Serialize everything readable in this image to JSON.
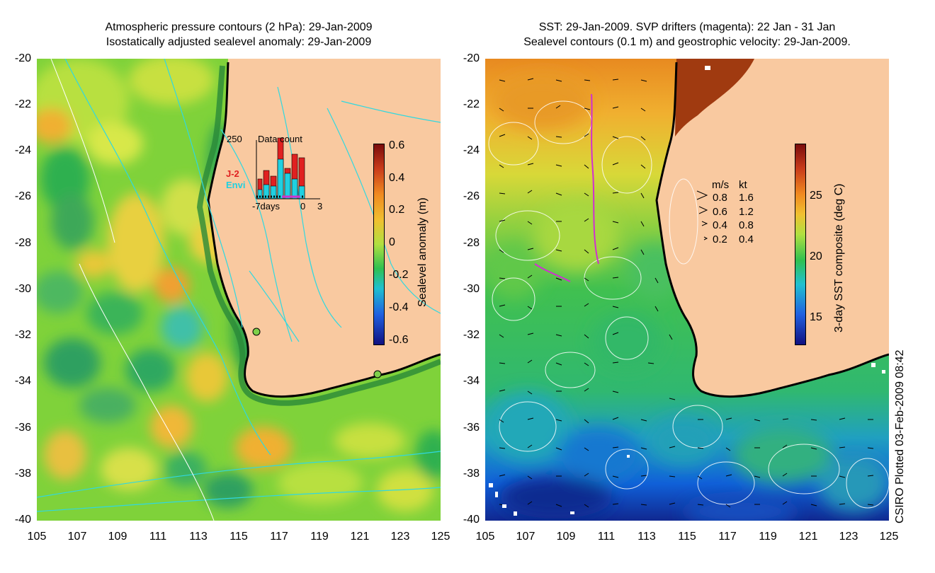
{
  "left_map": {
    "title_line1": "Atmospheric pressure contours (2 hPa): 29-Jan-2009",
    "title_line2": "Isostatically adjusted sealevel anomaly: 29-Jan-2009",
    "y_ticks": [
      "-20",
      "-22",
      "-24",
      "-26",
      "-28",
      "-30",
      "-32",
      "-34",
      "-36",
      "-38",
      "-40"
    ],
    "x_ticks": [
      "105",
      "107",
      "109",
      "111",
      "113",
      "115",
      "117",
      "119",
      "121",
      "123",
      "125"
    ],
    "colorbar": {
      "label": "Sealevel anomaly (m)",
      "ticks": [
        "0.6",
        "0.4",
        "0.2",
        "0",
        "-0.2",
        "-0.4",
        "-0.6"
      ],
      "range": [
        -0.6,
        0.6
      ]
    },
    "inset": {
      "title": "Data count",
      "ymax_label": "250",
      "x_labels": [
        "-7days",
        "0",
        "3"
      ],
      "series": [
        {
          "name": "J-2",
          "color": "#e02020"
        },
        {
          "name": "Envi",
          "color": "#20d0e0"
        }
      ]
    },
    "colors": {
      "land": "#f9c9a0",
      "coast": "#000000",
      "pressure_contour": "#30d8e0"
    }
  },
  "right_map": {
    "title_line1": "SST: 29-Jan-2009. SVP drifters (magenta): 22 Jan - 31 Jan",
    "title_line2": "Sealevel contours (0.1 m) and geostrophic velocity: 29-Jan-2009.",
    "y_ticks": [
      "-20",
      "-22",
      "-24",
      "-26",
      "-28",
      "-30",
      "-32",
      "-34",
      "-36",
      "-38",
      "-40"
    ],
    "x_ticks": [
      "105",
      "107",
      "109",
      "111",
      "113",
      "115",
      "117",
      "119",
      "121",
      "123",
      "125"
    ],
    "colorbar": {
      "label": "3-day SST composite (deg C)",
      "ticks": [
        "25",
        "20",
        "15"
      ]
    },
    "velocity_legend": {
      "header_ms": "m/s",
      "header_kt": "kt",
      "rows": [
        {
          "ms": "0.8",
          "kt": "1.6"
        },
        {
          "ms": "0.6",
          "kt": "1.2"
        },
        {
          "ms": "0.4",
          "kt": "0.8"
        },
        {
          "ms": "0.2",
          "kt": "0.4"
        }
      ]
    },
    "colors": {
      "land": "#f9c9a0",
      "drifters": "#d030d0",
      "sealevel_contour": "#ffffff"
    }
  },
  "credit": "CSIRO Plotted 03-Feb-2009 08:42"
}
